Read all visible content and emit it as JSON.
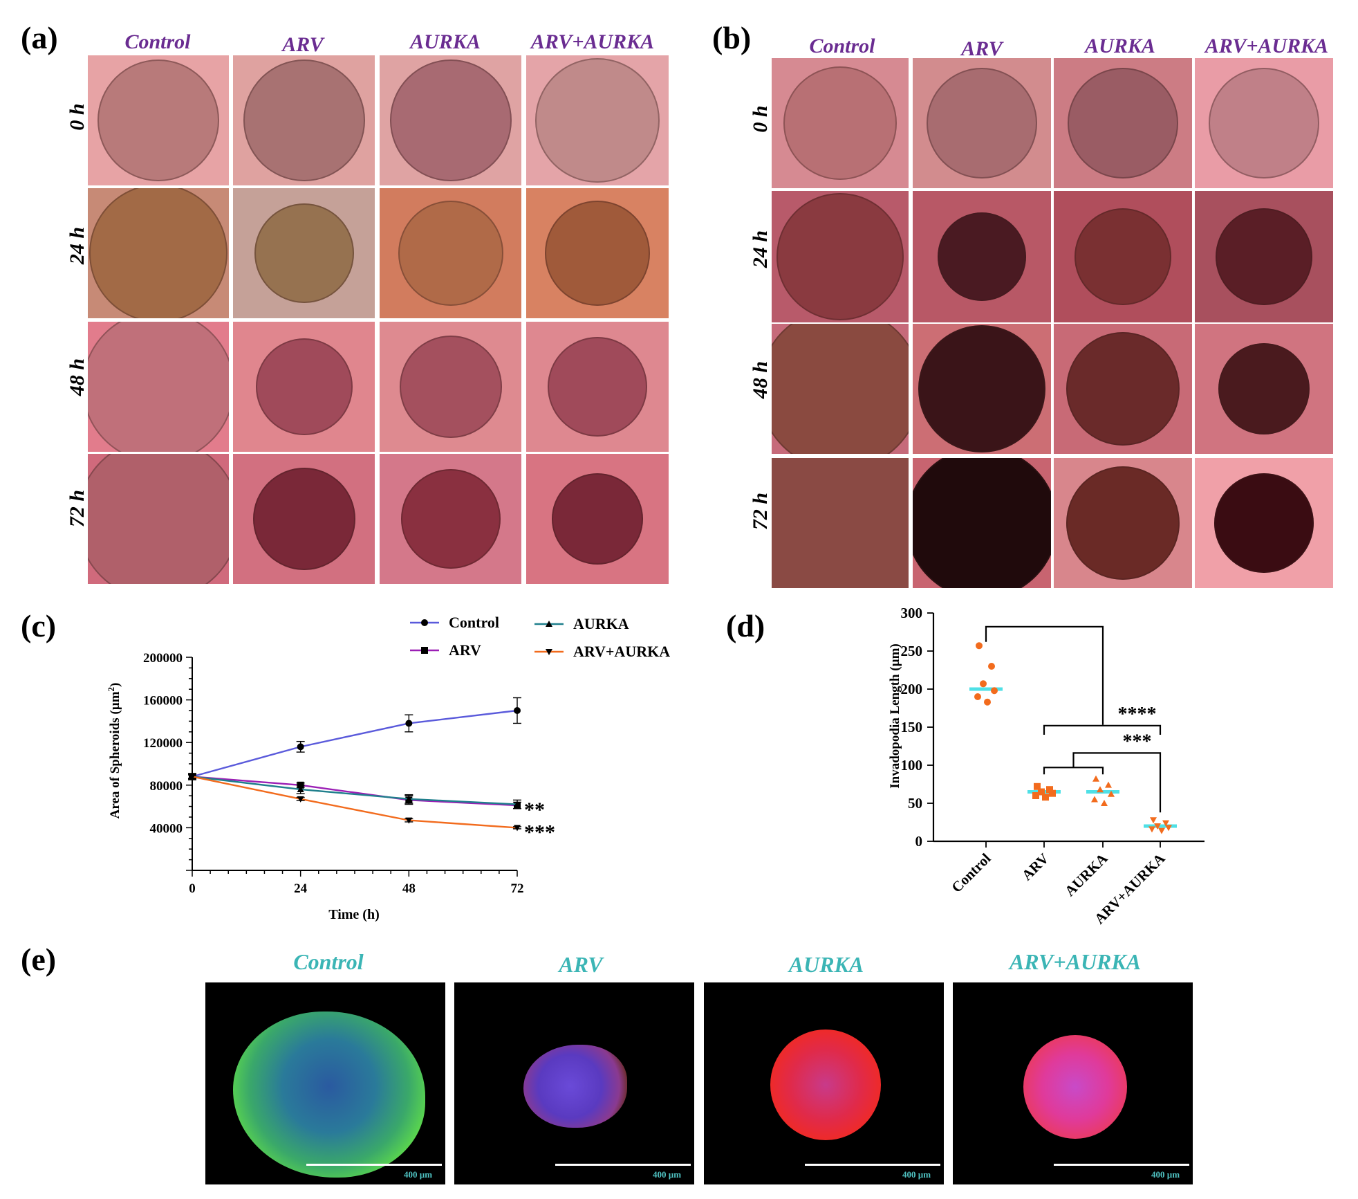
{
  "panels": {
    "a": {
      "letter": "(a)"
    },
    "b": {
      "letter": "(b)"
    },
    "c": {
      "letter": "(c)"
    },
    "d": {
      "letter": "(d)"
    },
    "e": {
      "letter": "(e)"
    }
  },
  "groups": [
    "Control",
    "ARV",
    "AURKA",
    "ARV+AURKA"
  ],
  "timepoints": [
    "0 h",
    "24 h",
    "48 h",
    "72 h"
  ],
  "colors": {
    "group_label": "#6a2c91",
    "fluor_label": "#3bb5b5",
    "control": "#5a5adb",
    "arv": "#9b1fb5",
    "aurka": "#1f7f8c",
    "arv_aurka": "#f26b1d",
    "median": "#4fe0e6",
    "dots": "#f26b1d"
  },
  "fluorescence": {
    "labels": [
      "Control",
      "ARV",
      "AURKA",
      "ARV+AURKA"
    ],
    "scale_text": "400 µm"
  },
  "chart_data": [
    {
      "id": "c",
      "type": "line",
      "x": [
        0,
        24,
        48,
        72
      ],
      "xlabel": "Time (h)",
      "ylabel": "Area of Spheroids (µm²)",
      "ylabel_main": "Area of Spheroids (µm",
      "ylabel_sup": "2",
      "ylabel_end": ")",
      "ylim": [
        0,
        200000
      ],
      "xlim": [
        0,
        72
      ],
      "xticks": [
        "0",
        "24",
        "48",
        "72"
      ],
      "yticks": [
        "40000",
        "80000",
        "120000",
        "160000",
        "200000"
      ],
      "ytick_values": [
        40000,
        80000,
        120000,
        160000,
        200000
      ],
      "legend": "top-right",
      "series": [
        {
          "name": "Control",
          "marker": "circle",
          "values": [
            88000,
            116000,
            138000,
            150000
          ],
          "err": [
            3000,
            5000,
            8000,
            12000
          ]
        },
        {
          "name": "ARV",
          "marker": "square",
          "values": [
            88000,
            80000,
            66000,
            61000
          ],
          "err": [
            2000,
            2000,
            4000,
            3000
          ]
        },
        {
          "name": "AURKA",
          "marker": "triangle-up",
          "values": [
            88000,
            76000,
            67000,
            62000
          ],
          "err": [
            2000,
            4000,
            4000,
            4000
          ]
        },
        {
          "name": "ARV+AURKA",
          "marker": "triangle-down",
          "values": [
            88000,
            67000,
            47000,
            40000
          ],
          "err": [
            1500,
            1500,
            1500,
            1000
          ]
        }
      ],
      "annotations": [
        {
          "text": "**",
          "series": "ARV"
        },
        {
          "text": "***",
          "series": "ARV+AURKA"
        }
      ]
    },
    {
      "id": "d",
      "type": "scatter",
      "categories": [
        "Control",
        "ARV",
        "AURKA",
        "ARV+AURKA"
      ],
      "ylabel": "Invadopodia Length (µm)",
      "ylim": [
        0,
        300
      ],
      "yticks": [
        "0",
        "50",
        "100",
        "150",
        "200",
        "250",
        "300"
      ],
      "ytick_values": [
        0,
        50,
        100,
        150,
        200,
        250,
        300
      ],
      "markers": [
        "circle",
        "square",
        "triangle-up",
        "triangle-down"
      ],
      "points": [
        [
          257,
          230,
          207,
          198,
          190,
          183
        ],
        [
          72,
          68,
          65,
          63,
          60,
          58
        ],
        [
          82,
          74,
          68,
          62,
          55,
          50
        ],
        [
          28,
          24,
          20,
          18,
          16,
          14
        ]
      ],
      "medians": [
        200,
        65,
        65,
        20
      ],
      "significance": [
        {
          "text": "****",
          "label": "Control vs ARV/AURKA/ARV+AURKA"
        },
        {
          "text": "***",
          "label": "ARV/AURKA vs ARV+AURKA"
        }
      ]
    }
  ]
}
